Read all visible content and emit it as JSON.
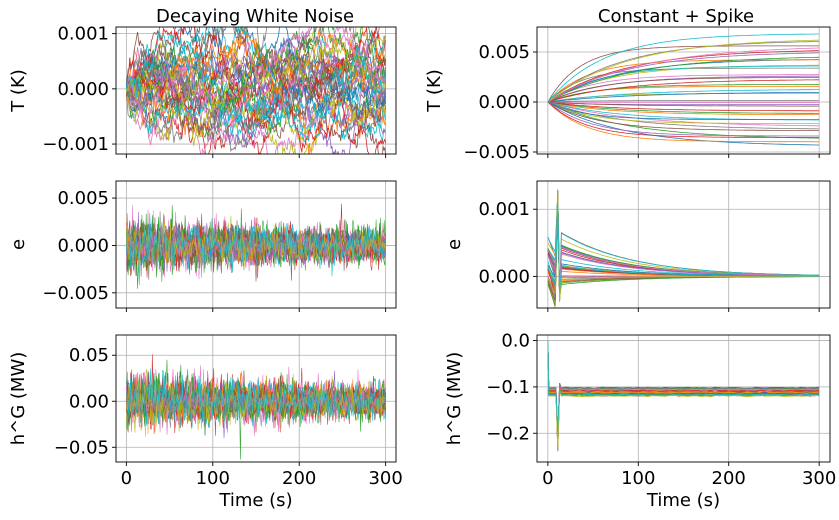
{
  "figure": {
    "col_titles": [
      "Decaying White Noise",
      "Constant + Spike"
    ],
    "xlabel": "Time (s)"
  },
  "palette": [
    "#1f77b4",
    "#ff7f0e",
    "#2ca02c",
    "#d62728",
    "#9467bd",
    "#8c564b",
    "#e377c2",
    "#7f7f7f",
    "#bcbd22",
    "#17becf"
  ],
  "chart_data": [
    {
      "type": "line",
      "title": "Decaying White Noise",
      "xlabel": "",
      "ylabel": "T (K)",
      "xlim": [
        -12,
        312
      ],
      "ylim": [
        -0.00118,
        0.00112
      ],
      "xticks": [
        0,
        100,
        200,
        300
      ],
      "xticklabels": [
        "",
        "",
        "",
        ""
      ],
      "yticks": [
        -0.001,
        0,
        0.001
      ],
      "yticklabels": [
        "−0.001",
        "0.000",
        "0.001"
      ],
      "grid": true,
      "series_summary": {
        "n_series": 40,
        "pattern": "random walk noise",
        "x_range": [
          0,
          300
        ],
        "max_abs_value": 0.001
      }
    },
    {
      "type": "line",
      "title": "Constant + Spike",
      "xlabel": "",
      "ylabel": "T (K)",
      "xlim": [
        -12,
        312
      ],
      "ylim": [
        -0.0052,
        0.0075
      ],
      "xticks": [
        0,
        100,
        200,
        300
      ],
      "xticklabels": [
        "",
        "",
        "",
        ""
      ],
      "yticks": [
        -0.005,
        0,
        0.005
      ],
      "yticklabels": [
        "−0.005",
        "0.000",
        "0.005"
      ],
      "grid": true,
      "series_summary": {
        "n_series": 40,
        "pattern": "exponential approach from 0",
        "x_range": [
          0,
          300
        ],
        "final_value_range": [
          -0.0045,
          0.0068
        ]
      }
    },
    {
      "type": "line",
      "title": "",
      "xlabel": "",
      "ylabel": "e",
      "xlim": [
        -12,
        312
      ],
      "ylim": [
        -0.0066,
        0.0068
      ],
      "xticks": [
        0,
        100,
        200,
        300
      ],
      "xticklabels": [
        "",
        "",
        "",
        ""
      ],
      "yticks": [
        -0.005,
        0,
        0.005
      ],
      "yticklabels": [
        "−0.005",
        "0.000",
        "0.005"
      ],
      "grid": true,
      "series_summary": {
        "n_series": 40,
        "pattern": "decaying white noise",
        "x_range": [
          0,
          300
        ],
        "peak_amplitude": 0.0055
      }
    },
    {
      "type": "line",
      "title": "",
      "xlabel": "",
      "ylabel": "e",
      "xlim": [
        -12,
        312
      ],
      "ylim": [
        -0.00047,
        0.00142
      ],
      "xticks": [
        0,
        100,
        200,
        300
      ],
      "xticklabels": [
        "",
        "",
        "",
        ""
      ],
      "yticks": [
        0,
        0.001
      ],
      "yticklabels": [
        "0.000",
        "0.001"
      ],
      "grid": true,
      "series_summary": {
        "n_series": 40,
        "pattern": "spike near t=12 then exponential decay to 0",
        "x_range": [
          0,
          300
        ],
        "spike_time": 12,
        "spike_peak": 0.0013,
        "initial_range": [
          -0.0001,
          0.00065
        ]
      }
    },
    {
      "type": "line",
      "title": "",
      "xlabel": "Time (s)",
      "ylabel": "h^G (MW)",
      "xlim": [
        -12,
        312
      ],
      "ylim": [
        -0.066,
        0.072
      ],
      "xticks": [
        0,
        100,
        200,
        300
      ],
      "xticklabels": [
        "0",
        "100",
        "200",
        "300"
      ],
      "yticks": [
        -0.05,
        0,
        0.05
      ],
      "yticklabels": [
        "−0.05",
        "0.00",
        "0.05"
      ],
      "grid": true,
      "series_summary": {
        "n_series": 40,
        "pattern": "decaying white noise",
        "x_range": [
          0,
          300
        ],
        "peak_amplitude": 0.065
      }
    },
    {
      "type": "line",
      "title": "",
      "xlabel": "Time (s)",
      "ylabel": "h^G (MW)",
      "xlim": [
        -12,
        312
      ],
      "ylim": [
        -0.262,
        0.012
      ],
      "xticks": [
        0,
        100,
        200,
        300
      ],
      "xticklabels": [
        "0",
        "100",
        "200",
        "300"
      ],
      "yticks": [
        0,
        -0.1,
        -0.2
      ],
      "yticklabels": [
        "0.0",
        "−0.1",
        "−0.2"
      ],
      "grid": true,
      "series_summary": {
        "n_series": 40,
        "pattern": "drop from 0 to constant with spike near t=12",
        "x_range": [
          0,
          300
        ],
        "constant_range": [
          -0.12,
          -0.102
        ],
        "spike_min": -0.24
      }
    }
  ]
}
